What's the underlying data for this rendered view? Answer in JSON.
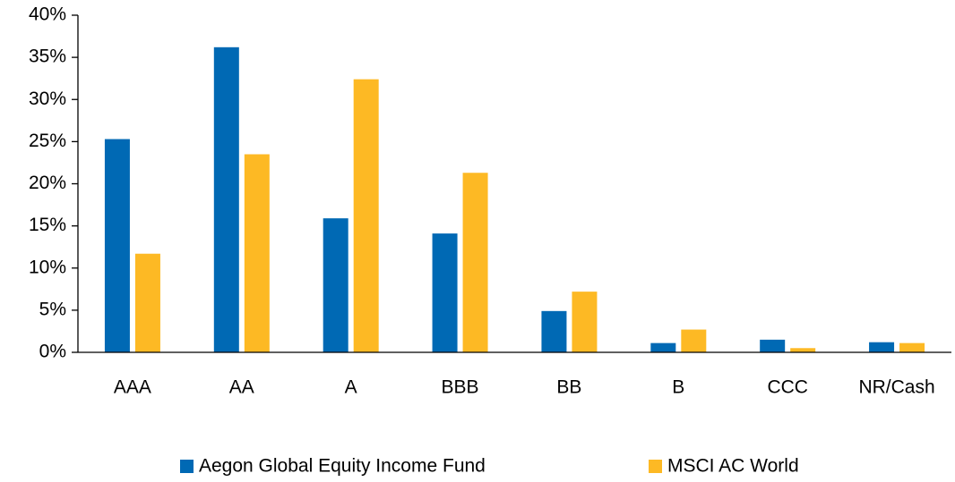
{
  "chart_data": {
    "type": "bar",
    "categories": [
      "AAA",
      "AA",
      "A",
      "BBB",
      "BB",
      "B",
      "CCC",
      "NR/Cash"
    ],
    "series": [
      {
        "name": "Aegon Global Equity Income Fund",
        "color": "#0069b4",
        "values": [
          25.3,
          36.2,
          15.9,
          14.1,
          4.9,
          1.1,
          1.5,
          1.2
        ]
      },
      {
        "name": "MSCI AC World",
        "color": "#fdb924",
        "values": [
          11.7,
          23.5,
          32.4,
          21.3,
          7.2,
          2.7,
          0.5,
          1.1
        ]
      }
    ],
    "ylim": [
      0,
      40
    ],
    "yticks": [
      {
        "value": 0,
        "label": "0%"
      },
      {
        "value": 5,
        "label": "5%"
      },
      {
        "value": 10,
        "label": "10%"
      },
      {
        "value": 15,
        "label": "15%"
      },
      {
        "value": 20,
        "label": "20%"
      },
      {
        "value": 25,
        "label": "25%"
      },
      {
        "value": 30,
        "label": "30%"
      },
      {
        "value": 35,
        "label": "35%"
      },
      {
        "value": 40,
        "label": "40%"
      }
    ],
    "grid": false,
    "legend": "bottom"
  }
}
